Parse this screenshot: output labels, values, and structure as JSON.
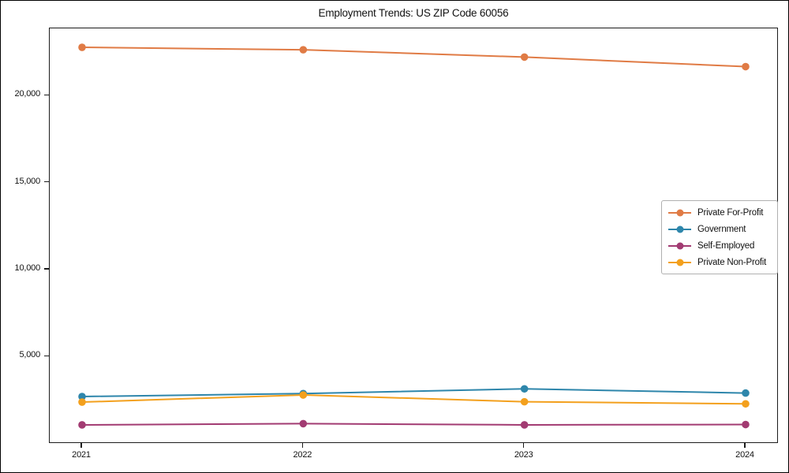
{
  "chart_data": {
    "type": "line",
    "title": "Employment Trends: US ZIP Code 60056",
    "xlabel": "",
    "ylabel": "",
    "grid": false,
    "x_labels": [
      "2021",
      "2022",
      "2023",
      "2024"
    ],
    "x": [
      2021,
      2022,
      2023,
      2024
    ],
    "series": [
      {
        "name": "Private For-Profit",
        "color": "#E07B45",
        "values": [
          22780,
          22640,
          22220,
          21670
        ]
      },
      {
        "name": "Government",
        "color": "#2E86AB",
        "values": [
          2700,
          2870,
          3140,
          2900
        ]
      },
      {
        "name": "Self-Employed",
        "color": "#A23B72",
        "values": [
          1070,
          1140,
          1070,
          1090
        ]
      },
      {
        "name": "Private Non-Profit",
        "color": "#F3A01D",
        "values": [
          2380,
          2790,
          2400,
          2280
        ]
      }
    ],
    "ylim": [
      -20,
      23870
    ],
    "yticks": [
      {
        "value": 5000,
        "label": "5,000"
      },
      {
        "value": 10000,
        "label": "10,000"
      },
      {
        "value": 15000,
        "label": "15,000"
      },
      {
        "value": 20000,
        "label": "20,000"
      }
    ],
    "legend": {
      "position": "center-right",
      "frame": true,
      "border_color": "#b0b0b0"
    },
    "marker": "circle",
    "line_width": 2,
    "marker_radius": 4.8
  }
}
